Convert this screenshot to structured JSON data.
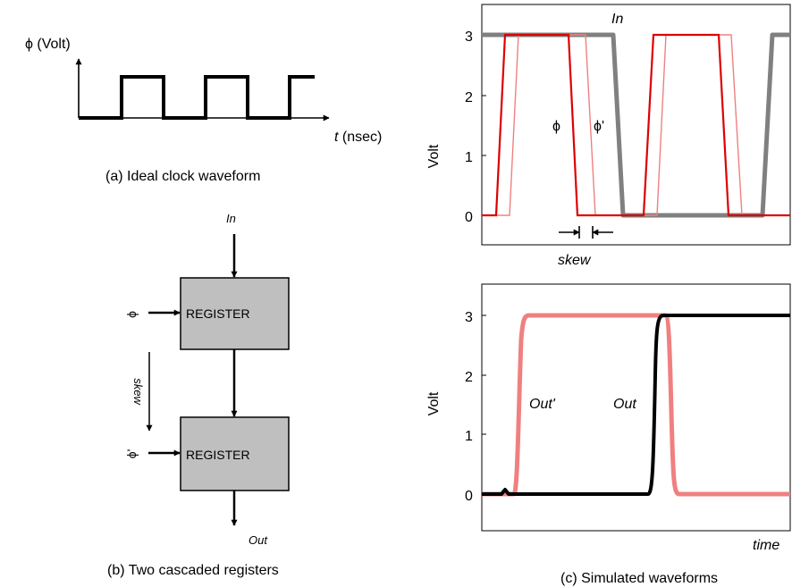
{
  "panel_a": {
    "y_label": "ϕ (Volt)",
    "x_label_var": "t",
    "x_label_unit": " (nsec)",
    "caption": "(a) Ideal clock waveform"
  },
  "panel_b": {
    "input_label": "In",
    "register_label": "REGISTER",
    "clock_label": "ϕ",
    "clock2_label": "ϕ'",
    "skew_label": "skew",
    "output_label": "Out",
    "caption": "(b) Two cascaded registers"
  },
  "panel_c": {
    "caption": "(c) Simulated waveforms",
    "skew_label": "skew",
    "time_label": "time",
    "top_plot": {
      "ylabel": "Volt",
      "yticks": [
        "0",
        "1",
        "2",
        "3"
      ],
      "ylim": [
        -0.5,
        3.5
      ],
      "trace_labels": {
        "in": "In",
        "phi": "ϕ",
        "phi2": "ϕ'"
      },
      "colors": {
        "in": "#808080",
        "phi": "#dd0000",
        "phi2": "#f08080"
      }
    },
    "bottom_plot": {
      "ylabel": "Volt",
      "yticks": [
        "0",
        "1",
        "2",
        "3"
      ],
      "ylim": [
        -0.5,
        3.5
      ],
      "trace_labels": {
        "out2": "Out'",
        "out": "Out"
      },
      "colors": {
        "out2": "#f08080",
        "out": "#000000"
      }
    }
  }
}
